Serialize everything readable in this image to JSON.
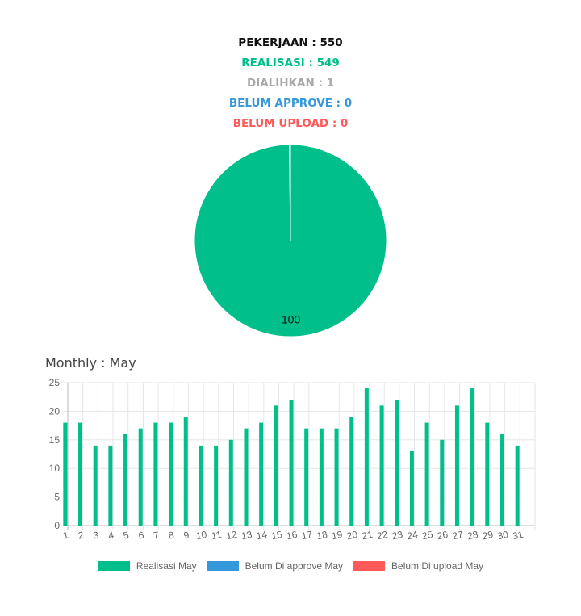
{
  "summary": {
    "pekerjaan": "PEKERJAAN : 550",
    "realisasi": "REALISASI : 549",
    "dialihkan": "DIALIHKAN : 1",
    "belum_approve": "BELUM APPROVE : 0",
    "belum_upload": "BELUM UPLOAD : 0"
  },
  "colors": {
    "pekerjaan": "#111111",
    "realisasi": "#00bf8a",
    "dialihkan": "#a8a8a8",
    "belum_approve": "#3498db",
    "belum_upload": "#ff5a5a"
  },
  "monthly_title": "Monthly : May",
  "chart_data": [
    {
      "type": "pie",
      "slices": [
        {
          "name": "Realisasi",
          "value": 549,
          "label": "100",
          "color": "#00bf8a"
        },
        {
          "name": "Dialihkan",
          "value": 1,
          "label": "",
          "color": "#a8a8a8"
        }
      ]
    },
    {
      "type": "bar",
      "categories": [
        "1",
        "2",
        "3",
        "4",
        "5",
        "6",
        "7",
        "8",
        "9",
        "10",
        "11",
        "12",
        "13",
        "14",
        "15",
        "16",
        "17",
        "18",
        "19",
        "20",
        "21",
        "22",
        "23",
        "24",
        "25",
        "26",
        "27",
        "28",
        "29",
        "30",
        "31"
      ],
      "series": [
        {
          "name": "Realisasi May",
          "color": "#00bf8a",
          "values": [
            18,
            18,
            14,
            14,
            16,
            17,
            18,
            18,
            19,
            14,
            14,
            15,
            17,
            18,
            21,
            22,
            17,
            17,
            17,
            19,
            24,
            21,
            22,
            13,
            18,
            15,
            21,
            24,
            18,
            16,
            14
          ]
        },
        {
          "name": "Belum Di approve May",
          "color": "#3498db",
          "values": [
            0,
            0,
            0,
            0,
            0,
            0,
            0,
            0,
            0,
            0,
            0,
            0,
            0,
            0,
            0,
            0,
            0,
            0,
            0,
            0,
            0,
            0,
            0,
            0,
            0,
            0,
            0,
            0,
            0,
            0,
            0
          ]
        },
        {
          "name": "Belum Di upload May",
          "color": "#ff5a5a",
          "values": [
            0,
            0,
            0,
            0,
            0,
            0,
            0,
            0,
            0,
            0,
            0,
            0,
            0,
            0,
            0,
            0,
            0,
            0,
            0,
            0,
            0,
            0,
            0,
            0,
            0,
            0,
            0,
            0,
            0,
            0,
            0
          ]
        }
      ],
      "ylim": [
        0,
        25
      ],
      "yticks": [
        0,
        5,
        10,
        15,
        20,
        25
      ],
      "grid": true,
      "legend": "bottom"
    }
  ]
}
